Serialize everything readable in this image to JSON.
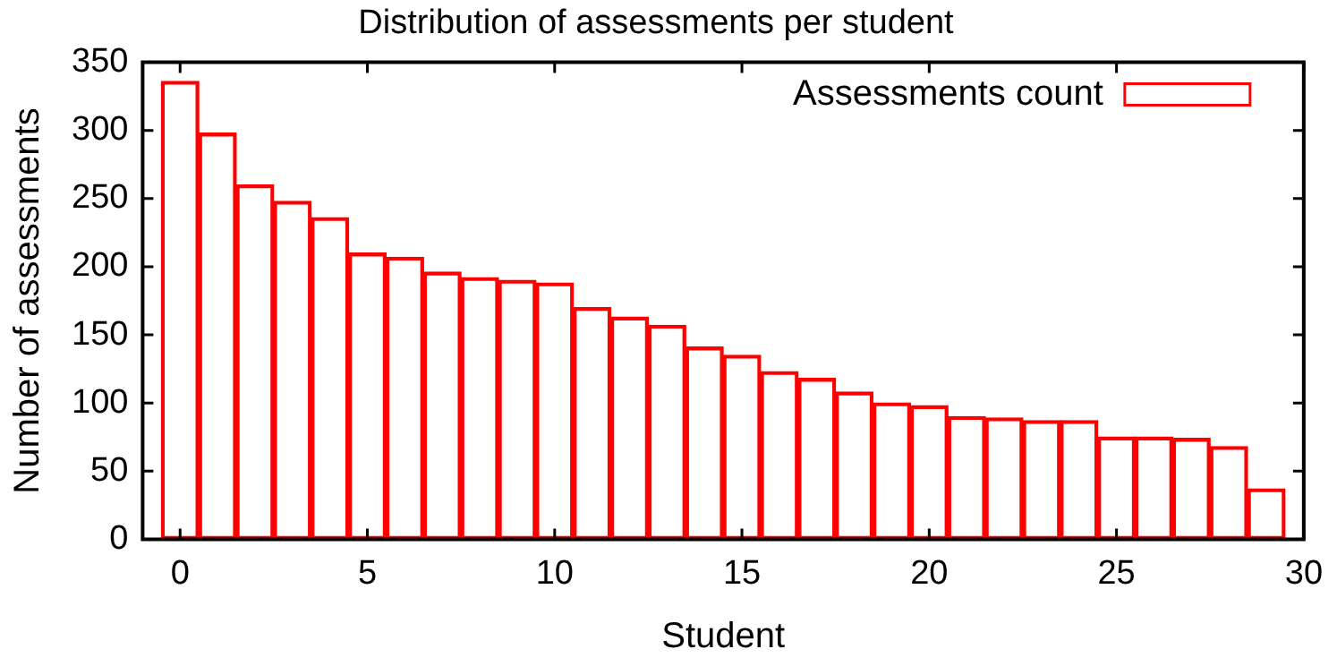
{
  "chart_data": {
    "type": "bar",
    "title": "Distribution of assessments per student",
    "xlabel": "Student",
    "ylabel": "Number of assessments",
    "x": [
      0,
      1,
      2,
      3,
      4,
      5,
      6,
      7,
      8,
      9,
      10,
      11,
      12,
      13,
      14,
      15,
      16,
      17,
      18,
      19,
      20,
      21,
      22,
      23,
      24,
      25,
      26,
      27,
      28,
      29
    ],
    "series": [
      {
        "name": "Assessments count",
        "color": "#ff0000",
        "values": [
          336,
          298,
          260,
          248,
          236,
          210,
          207,
          196,
          192,
          190,
          188,
          170,
          163,
          157,
          141,
          135,
          123,
          118,
          108,
          100,
          98,
          90,
          89,
          87,
          87,
          75,
          75,
          74,
          68,
          37
        ]
      }
    ],
    "xlim": [
      -1,
      30
    ],
    "xticks": [
      0,
      5,
      10,
      15,
      20,
      25,
      30
    ],
    "ylim": [
      0,
      350
    ],
    "yticks": [
      0,
      50,
      100,
      150,
      200,
      250,
      300,
      350
    ],
    "grid": false,
    "legend": "top right"
  }
}
